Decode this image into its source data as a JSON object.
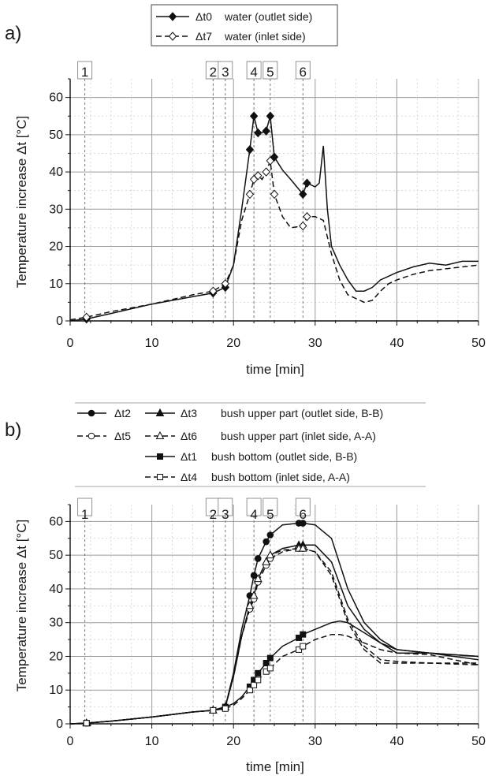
{
  "chart_data": [
    {
      "panel_label": "a)",
      "type": "line",
      "xlabel": "time [min]",
      "ylabel": "Temperature increase Δt [°C]",
      "xlim": [
        0,
        50
      ],
      "ylim": [
        0,
        65
      ],
      "xticks": [
        "0",
        "10",
        "20",
        "30",
        "40",
        "50"
      ],
      "yticks": [
        "0",
        "10",
        "20",
        "30",
        "40",
        "50",
        "60"
      ],
      "grid": true,
      "legend_position": "top-center",
      "event_markers": [
        {
          "label": "1",
          "x": 1.8
        },
        {
          "label": "2",
          "x": 17.5
        },
        {
          "label": "3",
          "x": 19.0
        },
        {
          "label": "4",
          "x": 22.5
        },
        {
          "label": "5",
          "x": 24.5
        },
        {
          "label": "6",
          "x": 28.5
        }
      ],
      "series": [
        {
          "symbol": "Δt0",
          "description": "water (outlet side)",
          "style": "solid",
          "marker": "filled-diamond",
          "x": [
            0,
            2,
            5,
            10,
            15,
            17.5,
            19,
            20,
            21,
            22,
            22.5,
            23,
            23.5,
            24,
            24.5,
            25,
            26,
            27,
            28.5,
            29,
            30,
            30.5,
            31,
            31.5,
            32,
            33,
            34,
            35,
            36,
            37,
            38,
            39,
            40,
            42,
            44,
            46,
            48,
            50
          ],
          "y": [
            0,
            0.5,
            2,
            4.5,
            6.5,
            7.5,
            9,
            15,
            30,
            46,
            55,
            50.5,
            50.5,
            51,
            55,
            44,
            40.5,
            38,
            34,
            37,
            36,
            37,
            47,
            30,
            20,
            15,
            11,
            8,
            8,
            9,
            11,
            12,
            13,
            14.5,
            15.5,
            15,
            16,
            16
          ]
        },
        {
          "symbol": "Δt7",
          "description": "water (inlet side)",
          "style": "dashed",
          "marker": "open-diamond",
          "x": [
            0,
            2,
            5,
            10,
            15,
            17.5,
            19,
            20,
            21,
            22,
            22.5,
            23,
            23.5,
            24,
            24.5,
            25,
            26,
            27,
            28.5,
            29,
            30,
            31,
            32,
            33,
            34,
            35,
            36,
            37,
            38,
            39,
            40,
            42,
            44,
            46,
            48,
            50
          ],
          "y": [
            0.3,
            1,
            2.5,
            4.5,
            7,
            8,
            10,
            15,
            27,
            34,
            38,
            39,
            38,
            40,
            43,
            34,
            28,
            25,
            25.5,
            28,
            28,
            27,
            18,
            11,
            7,
            6,
            5,
            5.5,
            8,
            10,
            11,
            12.5,
            13.5,
            14,
            14.5,
            15
          ]
        }
      ]
    },
    {
      "panel_label": "b)",
      "type": "line",
      "xlabel": "time [min]",
      "ylabel": "Temperature increase Δt [°C]",
      "xlim": [
        0,
        50
      ],
      "ylim": [
        0,
        65
      ],
      "xticks": [
        "0",
        "10",
        "20",
        "30",
        "40",
        "50"
      ],
      "yticks": [
        "0",
        "10",
        "20",
        "30",
        "40",
        "50",
        "60"
      ],
      "grid": true,
      "legend_position": "top",
      "event_markers": [
        {
          "label": "1",
          "x": 1.8
        },
        {
          "label": "2",
          "x": 17.5
        },
        {
          "label": "3",
          "x": 19.0
        },
        {
          "label": "4",
          "x": 22.5
        },
        {
          "label": "5",
          "x": 24.5
        },
        {
          "label": "6",
          "x": 28.5
        }
      ],
      "legend_rows": [
        {
          "symbols": [
            "Δt2",
            "Δt3"
          ],
          "description": "bush upper part (outlet side, B-B)"
        },
        {
          "symbols": [
            "Δt5",
            "Δt6"
          ],
          "description": "bush upper part (inlet side, A-A)"
        },
        {
          "symbols": [
            "Δt1"
          ],
          "description": "bush bottom (outlet side, B-B)"
        },
        {
          "symbols": [
            "Δt4"
          ],
          "description": "bush bottom (inlet side, A-A)"
        }
      ],
      "series": [
        {
          "symbol": "Δt2",
          "style": "solid",
          "marker": "filled-circle",
          "x": [
            0,
            2,
            5,
            10,
            15,
            17.5,
            19,
            20,
            21,
            22,
            22.5,
            23,
            24,
            24.5,
            26,
            28,
            28.5,
            30,
            32,
            34,
            36,
            38,
            40,
            44,
            50
          ],
          "y": [
            0,
            0.2,
            0.8,
            2,
            3.5,
            4,
            5,
            15,
            28,
            38,
            44,
            49,
            54,
            56,
            59,
            59.5,
            59.5,
            59,
            55,
            40,
            30,
            25,
            22,
            21,
            20
          ]
        },
        {
          "symbol": "Δt3",
          "style": "solid",
          "marker": "filled-triangle",
          "x": [
            0,
            2,
            5,
            10,
            15,
            17.5,
            19,
            20,
            21,
            22,
            22.5,
            23,
            24,
            24.5,
            26,
            28,
            28.5,
            30,
            32,
            34,
            36,
            38,
            40,
            44,
            50
          ],
          "y": [
            0,
            0.2,
            0.8,
            2,
            3.5,
            4,
            5,
            14,
            26,
            35,
            38,
            43,
            48,
            50,
            52,
            53,
            53,
            53,
            48,
            35,
            28,
            24,
            21,
            21,
            20
          ]
        },
        {
          "symbol": "Δt5",
          "style": "dashed",
          "marker": "open-circle",
          "x": [
            0,
            2,
            5,
            10,
            15,
            17.5,
            19,
            20,
            21,
            22,
            22.5,
            23,
            24,
            24.5,
            26,
            28,
            28.5,
            30,
            32,
            34,
            36,
            38,
            40,
            44,
            50
          ],
          "y": [
            0,
            0.2,
            0.8,
            2,
            3.5,
            4,
            5,
            14,
            26,
            34,
            37,
            42,
            47,
            49,
            51,
            52,
            52,
            51,
            44,
            30,
            22,
            18,
            18,
            18,
            18
          ]
        },
        {
          "symbol": "Δt6",
          "style": "dashed",
          "marker": "open-triangle",
          "x": [
            0,
            2,
            5,
            10,
            15,
            17.5,
            19,
            20,
            21,
            22,
            22.5,
            23,
            24,
            24.5,
            26,
            28,
            28.5,
            30,
            32,
            34,
            36,
            38,
            40,
            44,
            50
          ],
          "y": [
            0,
            0.2,
            0.8,
            2,
            3.5,
            4,
            5,
            14,
            26,
            35,
            38,
            43,
            48,
            50,
            51.5,
            52,
            52,
            51,
            45,
            31,
            23,
            19,
            18.5,
            18,
            17.5
          ]
        },
        {
          "symbol": "Δt1",
          "style": "solid",
          "marker": "filled-square",
          "x": [
            0,
            2,
            5,
            10,
            15,
            17.5,
            19,
            20,
            21,
            22,
            22.5,
            23,
            24,
            24.5,
            26,
            28,
            28.5,
            30,
            32,
            33,
            34,
            36,
            38,
            40,
            44,
            50
          ],
          "y": [
            0,
            0.2,
            0.8,
            2,
            3.5,
            4,
            5,
            6,
            8,
            11,
            13,
            15,
            18,
            19.5,
            23,
            25.5,
            26.5,
            28,
            30,
            30.5,
            30,
            27,
            24,
            22,
            21,
            19
          ]
        },
        {
          "symbol": "Δt4",
          "style": "dashed",
          "marker": "open-square",
          "x": [
            0,
            2,
            5,
            10,
            15,
            17.5,
            19,
            20,
            21,
            22,
            22.5,
            23,
            24,
            24.5,
            26,
            28,
            28.5,
            30,
            32,
            33,
            34,
            36,
            38,
            40,
            44,
            50
          ],
          "y": [
            0,
            0.2,
            0.8,
            2,
            3.5,
            4,
            4.5,
            5.5,
            7.5,
            10,
            11.5,
            13,
            15.5,
            16.5,
            20,
            22,
            23,
            25,
            26.5,
            26.5,
            26,
            24,
            22,
            21,
            20.5,
            17.5
          ]
        }
      ]
    }
  ]
}
